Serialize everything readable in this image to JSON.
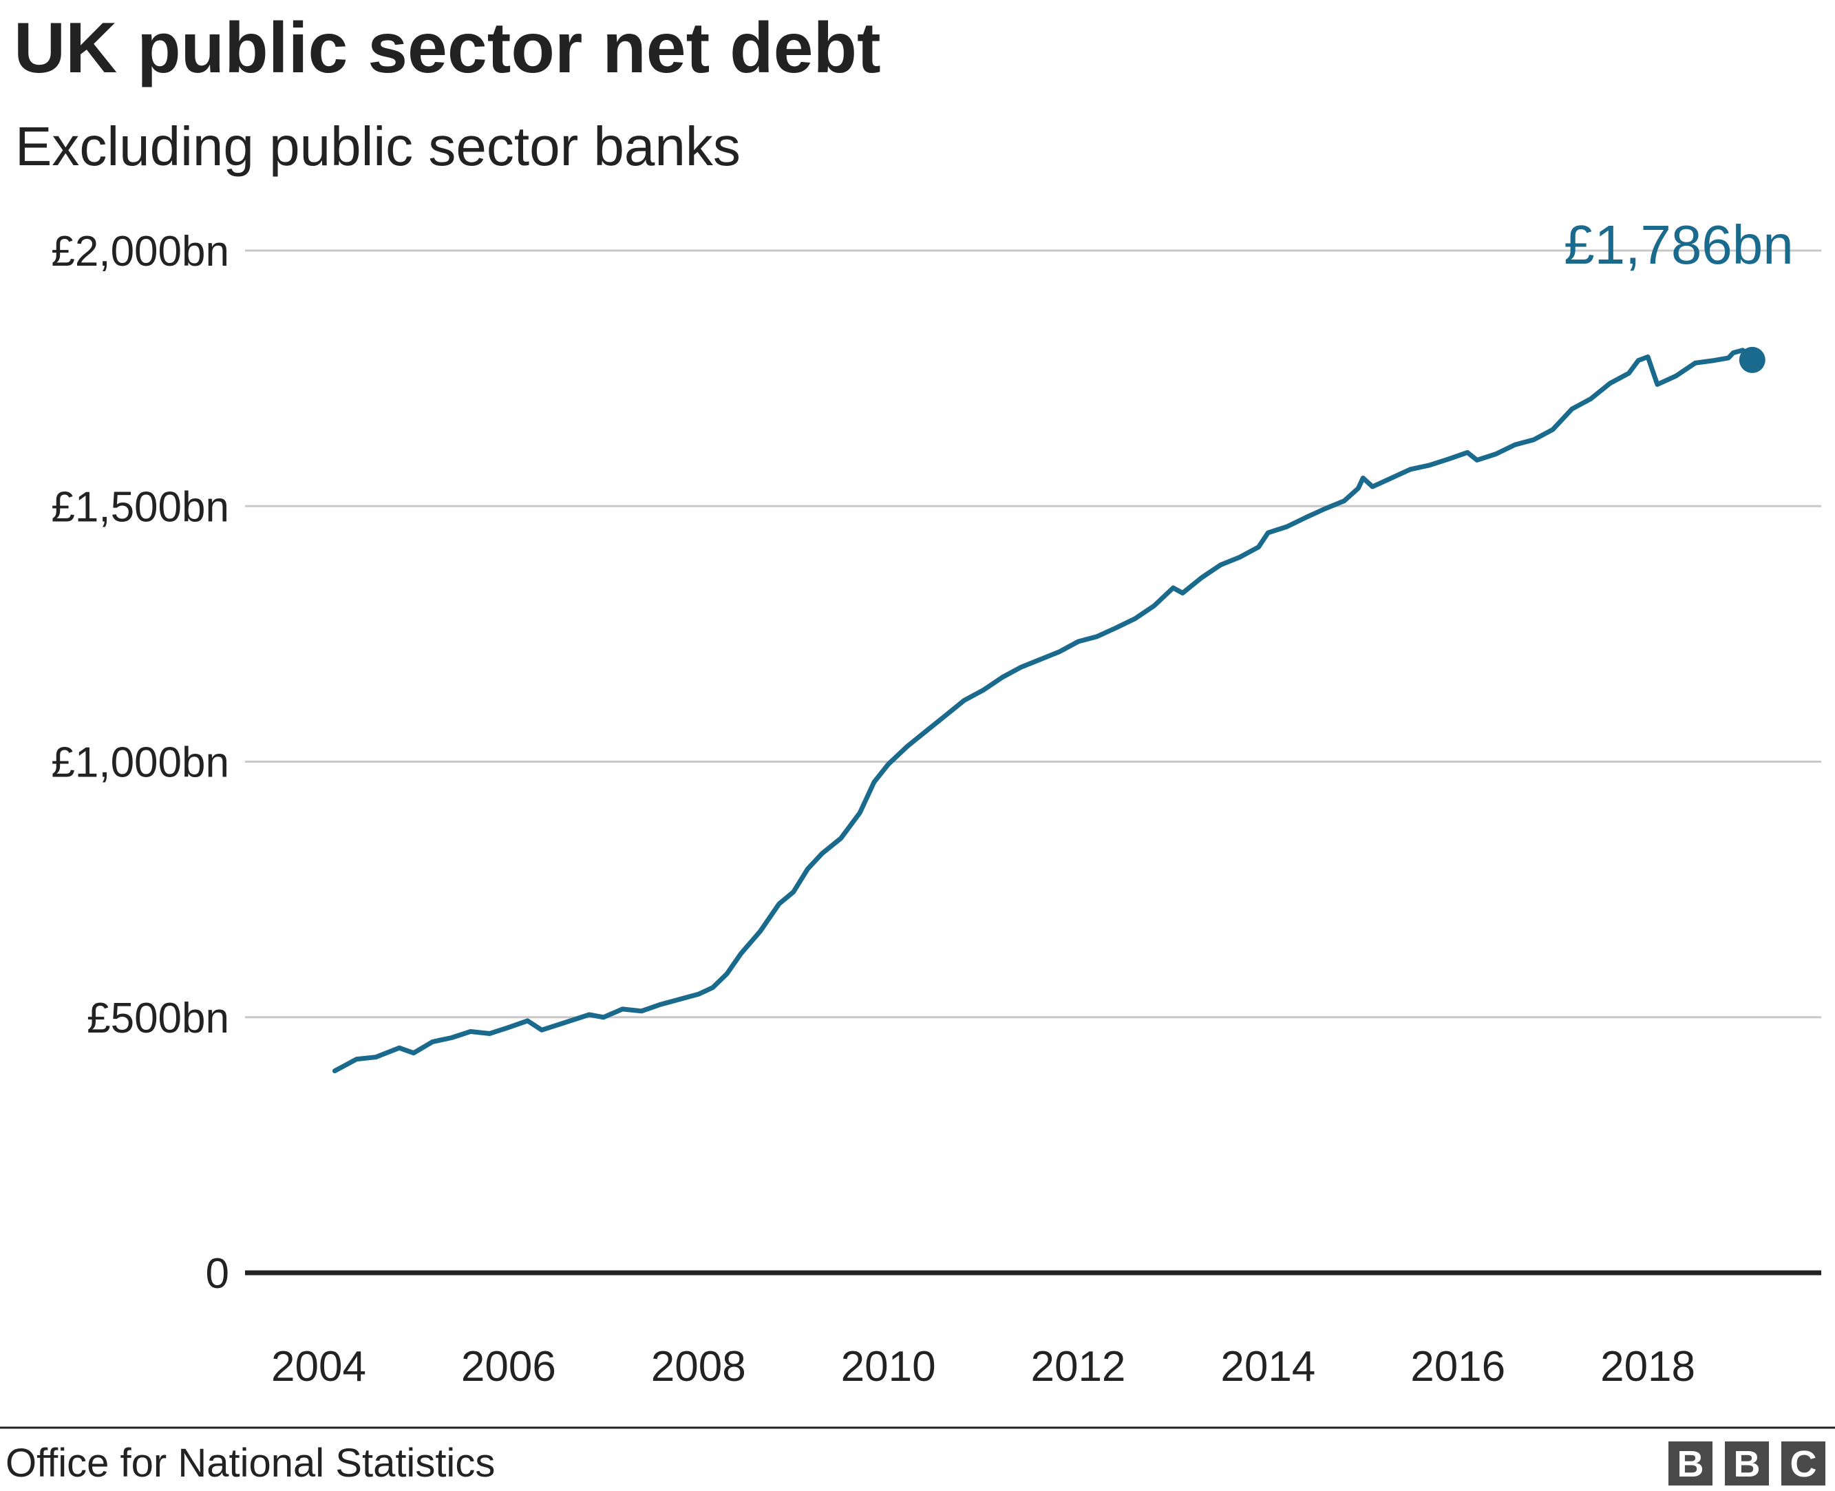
{
  "chart_data": {
    "type": "line",
    "title": "UK public sector net debt",
    "subtitle": "Excluding public sector banks",
    "source": "Office for National Statistics",
    "brand": "BBC",
    "brand_letters": [
      "B",
      "B",
      "C"
    ],
    "xlim": [
      2004.0,
      2019.0
    ],
    "ylim": [
      0,
      2000
    ],
    "y_ticks": [
      {
        "value": 0,
        "label": "0"
      },
      {
        "value": 500,
        "label": "£500bn"
      },
      {
        "value": 1000,
        "label": "£1,000bn"
      },
      {
        "value": 1500,
        "label": "£1,500bn"
      },
      {
        "value": 2000,
        "label": "£2,000bn"
      }
    ],
    "x_ticks": [
      {
        "value": 2004,
        "label": "2004"
      },
      {
        "value": 2006,
        "label": "2006"
      },
      {
        "value": 2008,
        "label": "2008"
      },
      {
        "value": 2010,
        "label": "2010"
      },
      {
        "value": 2012,
        "label": "2012"
      },
      {
        "value": 2014,
        "label": "2014"
      },
      {
        "value": 2016,
        "label": "2016"
      },
      {
        "value": 2018,
        "label": "2018"
      }
    ],
    "grid": true,
    "series": [
      {
        "color": "#1a6a8e",
        "points": [
          [
            2004.17,
            395
          ],
          [
            2004.4,
            418
          ],
          [
            2004.6,
            422
          ],
          [
            2004.85,
            440
          ],
          [
            2005.0,
            430
          ],
          [
            2005.2,
            452
          ],
          [
            2005.4,
            460
          ],
          [
            2005.6,
            472
          ],
          [
            2005.8,
            468
          ],
          [
            2006.0,
            480
          ],
          [
            2006.2,
            493
          ],
          [
            2006.35,
            475
          ],
          [
            2006.6,
            490
          ],
          [
            2006.85,
            505
          ],
          [
            2007.0,
            500
          ],
          [
            2007.2,
            516
          ],
          [
            2007.4,
            512
          ],
          [
            2007.6,
            525
          ],
          [
            2007.8,
            535
          ],
          [
            2008.0,
            545
          ],
          [
            2008.15,
            558
          ],
          [
            2008.3,
            585
          ],
          [
            2008.45,
            625
          ],
          [
            2008.65,
            668
          ],
          [
            2008.85,
            722
          ],
          [
            2009.0,
            745
          ],
          [
            2009.15,
            790
          ],
          [
            2009.3,
            820
          ],
          [
            2009.5,
            850
          ],
          [
            2009.7,
            900
          ],
          [
            2009.85,
            960
          ],
          [
            2010.0,
            995
          ],
          [
            2010.2,
            1030
          ],
          [
            2010.4,
            1060
          ],
          [
            2010.6,
            1090
          ],
          [
            2010.8,
            1120
          ],
          [
            2011.0,
            1140
          ],
          [
            2011.2,
            1165
          ],
          [
            2011.4,
            1185
          ],
          [
            2011.6,
            1200
          ],
          [
            2011.8,
            1215
          ],
          [
            2012.0,
            1235
          ],
          [
            2012.2,
            1245
          ],
          [
            2012.4,
            1262
          ],
          [
            2012.6,
            1280
          ],
          [
            2012.8,
            1305
          ],
          [
            2013.0,
            1340
          ],
          [
            2013.1,
            1330
          ],
          [
            2013.3,
            1360
          ],
          [
            2013.5,
            1385
          ],
          [
            2013.7,
            1400
          ],
          [
            2013.9,
            1420
          ],
          [
            2014.0,
            1448
          ],
          [
            2014.2,
            1460
          ],
          [
            2014.4,
            1478
          ],
          [
            2014.6,
            1495
          ],
          [
            2014.8,
            1510
          ],
          [
            2014.95,
            1535
          ],
          [
            2015.0,
            1555
          ],
          [
            2015.1,
            1538
          ],
          [
            2015.3,
            1555
          ],
          [
            2015.5,
            1572
          ],
          [
            2015.7,
            1580
          ],
          [
            2015.9,
            1592
          ],
          [
            2016.1,
            1605
          ],
          [
            2016.2,
            1590
          ],
          [
            2016.4,
            1602
          ],
          [
            2016.6,
            1620
          ],
          [
            2016.8,
            1630
          ],
          [
            2017.0,
            1650
          ],
          [
            2017.2,
            1690
          ],
          [
            2017.4,
            1710
          ],
          [
            2017.6,
            1740
          ],
          [
            2017.8,
            1760
          ],
          [
            2017.9,
            1785
          ],
          [
            2018.0,
            1792
          ],
          [
            2018.1,
            1738
          ],
          [
            2018.3,
            1755
          ],
          [
            2018.5,
            1780
          ],
          [
            2018.7,
            1785
          ],
          [
            2018.85,
            1790
          ],
          [
            2018.9,
            1800
          ],
          [
            2019.0,
            1805
          ],
          [
            2019.1,
            1786
          ]
        ]
      }
    ],
    "last_value_label": "£1,786bn",
    "last_point": [
      2019.1,
      1786
    ]
  }
}
